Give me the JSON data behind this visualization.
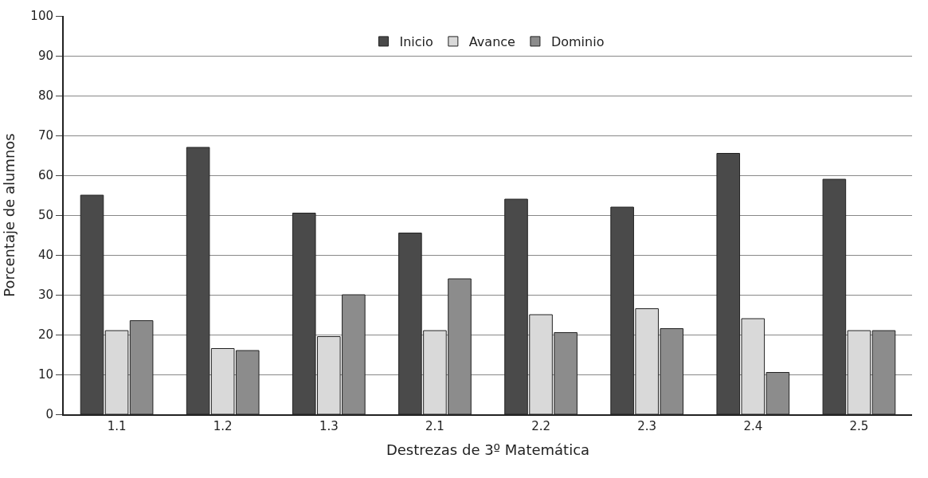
{
  "chart_data": {
    "type": "bar",
    "xlabel": "Destrezas de 3º Matemática",
    "ylabel": "Porcentaje de alumnos",
    "categories": [
      "1.1",
      "1.2",
      "1.3",
      "2.1",
      "2.2",
      "2.3",
      "2.4",
      "2.5"
    ],
    "series": [
      {
        "name": "Inicio",
        "color": "#4a4a4a",
        "values": [
          55,
          67,
          50.5,
          45.5,
          54,
          52,
          65.5,
          59
        ]
      },
      {
        "name": "Avance",
        "color": "#d9d9d9",
        "values": [
          21,
          16.5,
          19.5,
          21,
          25,
          26.5,
          24,
          21
        ]
      },
      {
        "name": "Dominio",
        "color": "#8c8c8c",
        "values": [
          23.5,
          16,
          30,
          34,
          20.5,
          21.5,
          10.5,
          21
        ]
      }
    ],
    "ylim": [
      0,
      100
    ],
    "yticks": [
      0,
      10,
      20,
      30,
      40,
      50,
      60,
      70,
      80,
      90,
      100
    ],
    "grid": "y",
    "legend": "top"
  }
}
